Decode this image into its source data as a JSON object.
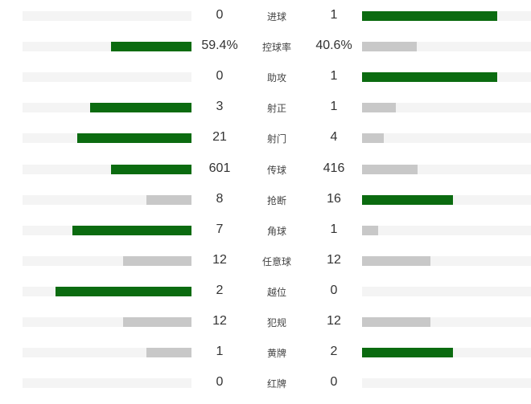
{
  "colors": {
    "win": "#0b6b10",
    "lose": "#c8c8c8",
    "track": "#f4f4f4"
  },
  "rows": [
    {
      "label": "进球",
      "home": "0",
      "away": "1",
      "home_fill": 0,
      "away_fill": 0.8,
      "home_win": false,
      "away_win": true
    },
    {
      "label": "控球率",
      "home": "59.4%",
      "away": "40.6%",
      "home_fill": 0.476,
      "away_fill": 0.324,
      "home_win": true,
      "away_win": false
    },
    {
      "label": "助攻",
      "home": "0",
      "away": "1",
      "home_fill": 0,
      "away_fill": 0.8,
      "home_win": false,
      "away_win": true
    },
    {
      "label": "射正",
      "home": "3",
      "away": "1",
      "home_fill": 0.6,
      "away_fill": 0.2,
      "home_win": true,
      "away_win": false
    },
    {
      "label": "射门",
      "home": "21",
      "away": "4",
      "home_fill": 0.676,
      "away_fill": 0.128,
      "home_win": true,
      "away_win": false
    },
    {
      "label": "传球",
      "home": "601",
      "away": "416",
      "home_fill": 0.476,
      "away_fill": 0.329,
      "home_win": true,
      "away_win": false
    },
    {
      "label": "抢断",
      "home": "8",
      "away": "16",
      "home_fill": 0.267,
      "away_fill": 0.538,
      "home_win": false,
      "away_win": true
    },
    {
      "label": "角球",
      "home": "7",
      "away": "1",
      "home_fill": 0.705,
      "away_fill": 0.095,
      "home_win": true,
      "away_win": false
    },
    {
      "label": "任意球",
      "home": "12",
      "away": "12",
      "home_fill": 0.405,
      "away_fill": 0.405,
      "home_win": false,
      "away_win": false
    },
    {
      "label": "越位",
      "home": "2",
      "away": "0",
      "home_fill": 0.805,
      "away_fill": 0,
      "home_win": true,
      "away_win": false
    },
    {
      "label": "犯规",
      "home": "12",
      "away": "12",
      "home_fill": 0.405,
      "away_fill": 0.405,
      "home_win": false,
      "away_win": false
    },
    {
      "label": "黄牌",
      "home": "1",
      "away": "2",
      "home_fill": 0.267,
      "away_fill": 0.538,
      "home_win": false,
      "away_win": true
    },
    {
      "label": "红牌",
      "home": "0",
      "away": "0",
      "home_fill": 0,
      "away_fill": 0,
      "home_win": false,
      "away_win": false
    }
  ]
}
